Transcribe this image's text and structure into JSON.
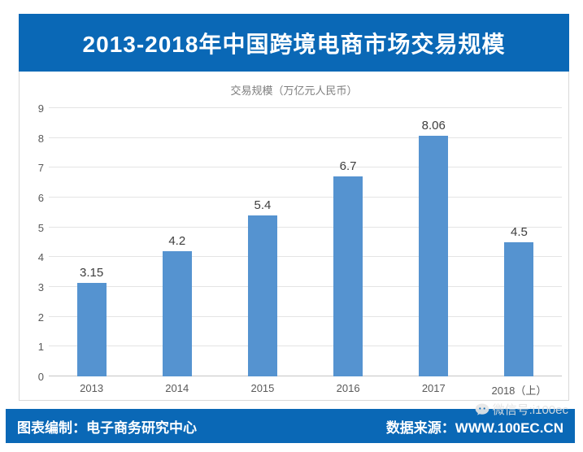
{
  "header": {
    "title": "2013-2018年中国跨境电商市场交易规模"
  },
  "chart_data": {
    "type": "bar",
    "title": "交易规模（万亿元人民币）",
    "categories": [
      "2013",
      "2014",
      "2015",
      "2016",
      "2017",
      "2018（上）"
    ],
    "values": [
      3.15,
      4.2,
      5.4,
      6.7,
      8.06,
      4.5
    ],
    "value_labels": [
      "3.15",
      "4.2",
      "5.4",
      "6.7",
      "8.06",
      "4.5"
    ],
    "ylim": [
      0,
      9
    ],
    "ytick_step": 1,
    "grid": true,
    "legend": "none",
    "bar_color": "#5593d0"
  },
  "footer": {
    "left_text": "图表编制：电子商务研究中心",
    "source_text": "数据来源：WWW.100EC.CN",
    "watermark_text": "微信号:i100ec"
  },
  "colors": {
    "accent_blue": "#0a68b6",
    "bar_blue": "#5593d0",
    "gridline": "#e4e4e4",
    "axis_text": "#595959"
  }
}
